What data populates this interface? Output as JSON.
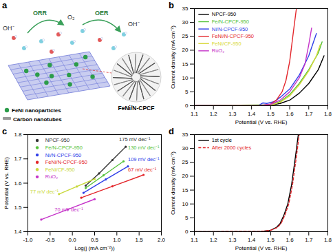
{
  "chart_data": [
    {
      "type": "diagram",
      "panel": "a",
      "species": [
        "OH⁻",
        "O₂",
        "OH⁻"
      ],
      "reactions": [
        "ORR",
        "OER"
      ],
      "keys": [
        "FeNi nanoparticles",
        "Carbon nanotubes"
      ],
      "inset_label": "FeNi/N-CPCF"
    },
    {
      "type": "line",
      "panel": "b",
      "x_label": "Potential (V vs. RHE)",
      "y_label": "Current density (mA cm⁻²)",
      "xlim": [
        1.1,
        1.8
      ],
      "xticks": [
        1.1,
        1.2,
        1.3,
        1.4,
        1.5,
        1.6,
        1.7,
        1.8
      ],
      "ylim": [
        0,
        35
      ],
      "yticks": [
        0,
        5,
        10,
        15,
        20,
        25,
        30,
        35
      ],
      "legend": "top-left",
      "series": [
        {
          "name": "NPCF-950",
          "color": "#000000",
          "x": [
            1.1,
            1.5,
            1.55,
            1.6,
            1.65,
            1.7,
            1.75,
            1.78
          ],
          "values": [
            0,
            0.2,
            0.8,
            2,
            4.5,
            8,
            13,
            18
          ]
        },
        {
          "name": "Fe/N-CPCF-950",
          "color": "#55c23a",
          "x": [
            1.1,
            1.5,
            1.55,
            1.6,
            1.65,
            1.7,
            1.75,
            1.77
          ],
          "values": [
            0,
            0.3,
            1.5,
            4,
            8,
            13,
            19,
            23
          ]
        },
        {
          "name": "Ni/N-CPCF-950",
          "color": "#2f3ee8",
          "x": [
            1.1,
            1.44,
            1.46,
            1.48,
            1.52,
            1.55,
            1.6,
            1.65,
            1.7,
            1.74
          ],
          "values": [
            0,
            0.2,
            1,
            0.8,
            1.5,
            3,
            6,
            11,
            18,
            26
          ]
        },
        {
          "name": "FeNi/N-CPCF-950",
          "color": "#e3262b",
          "x": [
            1.1,
            1.45,
            1.5,
            1.53,
            1.56,
            1.58,
            1.6,
            1.62,
            1.635
          ],
          "values": [
            0,
            0.1,
            0.6,
            2,
            5,
            9,
            16,
            27,
            35
          ]
        },
        {
          "name": "FeNi/CF-950",
          "color": "#d9d93a",
          "x": [
            1.1,
            1.5,
            1.55,
            1.6,
            1.65,
            1.7,
            1.74,
            1.76
          ],
          "values": [
            0,
            0.2,
            1.2,
            3.5,
            7.5,
            12.5,
            18,
            22
          ]
        },
        {
          "name": "RuO₂",
          "color": "#c533c9",
          "x": [
            1.1,
            1.45,
            1.5,
            1.55,
            1.6,
            1.65,
            1.68,
            1.7,
            1.715
          ],
          "values": [
            0,
            0.1,
            0.5,
            2,
            5,
            10,
            15,
            22,
            28
          ]
        }
      ]
    },
    {
      "type": "line",
      "panel": "c",
      "x_label": "Log(j (mA cm⁻²))",
      "y_label": "Potential (V vs. RHE)",
      "xlim": [
        -1.0,
        2.0
      ],
      "xticks": [
        {
          "value": -1.0,
          "label": "-1.0"
        },
        -0.5,
        {
          "value": 0.0,
          "label": "0.0"
        },
        0.5,
        {
          "value": 1.0,
          "label": "1.0"
        },
        1.5,
        {
          "value": 2.0,
          "label": "2.0"
        }
      ],
      "ylim": [
        1.4,
        1.8
      ],
      "yticks": [
        1.4,
        1.5,
        1.6,
        1.7,
        1.8
      ],
      "legend": "top-left",
      "series": [
        {
          "name": "NPCF-950",
          "color": "#333333",
          "marker": "circle",
          "x": [
            0.3,
            0.6,
            0.9,
            1.2
          ],
          "values": [
            1.59,
            1.64,
            1.695,
            1.75
          ]
        },
        {
          "name": "Fe/N-CPCF-950",
          "color": "#55c23a",
          "marker": "circle",
          "x": [
            0.3,
            0.7,
            1.15
          ],
          "values": [
            1.58,
            1.632,
            1.69
          ]
        },
        {
          "name": "Ni/N-CPCF-950",
          "color": "#2f3ee8",
          "marker": "circle",
          "x": [
            0.25,
            0.75,
            1.25
          ],
          "values": [
            1.56,
            1.615,
            1.669
          ]
        },
        {
          "name": "FeNi/N-CPCF-950",
          "color": "#e3262b",
          "marker": "circle",
          "x": [
            0.2,
            0.9,
            1.6
          ],
          "values": [
            1.54,
            1.587,
            1.634
          ]
        },
        {
          "name": "FeNi/CF-950",
          "color": "#c8d83a",
          "marker": "circle",
          "x": [
            -0.3,
            0.1,
            0.5
          ],
          "values": [
            1.555,
            1.586,
            1.617
          ]
        },
        {
          "name": "RuO₂",
          "color": "#c533c9",
          "marker": "circle",
          "x": [
            -0.7,
            -0.1,
            0.5
          ],
          "values": [
            1.45,
            1.492,
            1.534
          ]
        }
      ],
      "annotations": [
        {
          "text": "175 mV dec⁻¹",
          "x": 1.05,
          "y": 1.78,
          "color": "#333333"
        },
        {
          "text": "130 mV dec⁻¹",
          "x": 1.25,
          "y": 1.745,
          "color": "#55c23a"
        },
        {
          "text": "109 mV dec⁻¹",
          "x": 1.25,
          "y": 1.697,
          "color": "#2f3ee8"
        },
        {
          "text": "67 mV dec⁻¹",
          "x": 1.25,
          "y": 1.655,
          "color": "#e3262b"
        },
        {
          "text": "77 mV dec⁻¹",
          "x": -0.95,
          "y": 1.565,
          "color": "#c8d83a"
        },
        {
          "text": "70 mV dec⁻¹",
          "x": -0.4,
          "y": 1.49,
          "color": "#c533c9"
        }
      ]
    },
    {
      "type": "line",
      "panel": "d",
      "x_label": "Potential (V vs. RHE)",
      "y_label": "Current density (mA cm⁻²)",
      "xlim": [
        1.1,
        1.8
      ],
      "xticks": [
        1.1,
        1.2,
        1.3,
        1.4,
        1.5,
        1.6,
        1.7,
        1.8
      ],
      "ylim": [
        0,
        35
      ],
      "yticks": [
        0,
        5,
        10,
        15,
        20,
        25,
        30,
        35
      ],
      "legend": "top-left",
      "series": [
        {
          "name": "1st cycle",
          "color": "#000000",
          "line_style": "solid",
          "x": [
            1.1,
            1.45,
            1.5,
            1.53,
            1.55,
            1.57,
            1.59,
            1.61,
            1.63,
            1.645
          ],
          "values": [
            0,
            0.1,
            0.5,
            1.5,
            3,
            6,
            10,
            17,
            27,
            35
          ]
        },
        {
          "name": "After 2000 cycles",
          "color": "#e3262b",
          "line_style": "dashed",
          "x": [
            1.1,
            1.45,
            1.5,
            1.535,
            1.555,
            1.575,
            1.595,
            1.615,
            1.635,
            1.65
          ],
          "values": [
            0,
            0.1,
            0.5,
            1.5,
            3,
            6,
            10,
            17,
            27,
            35
          ]
        }
      ]
    }
  ]
}
